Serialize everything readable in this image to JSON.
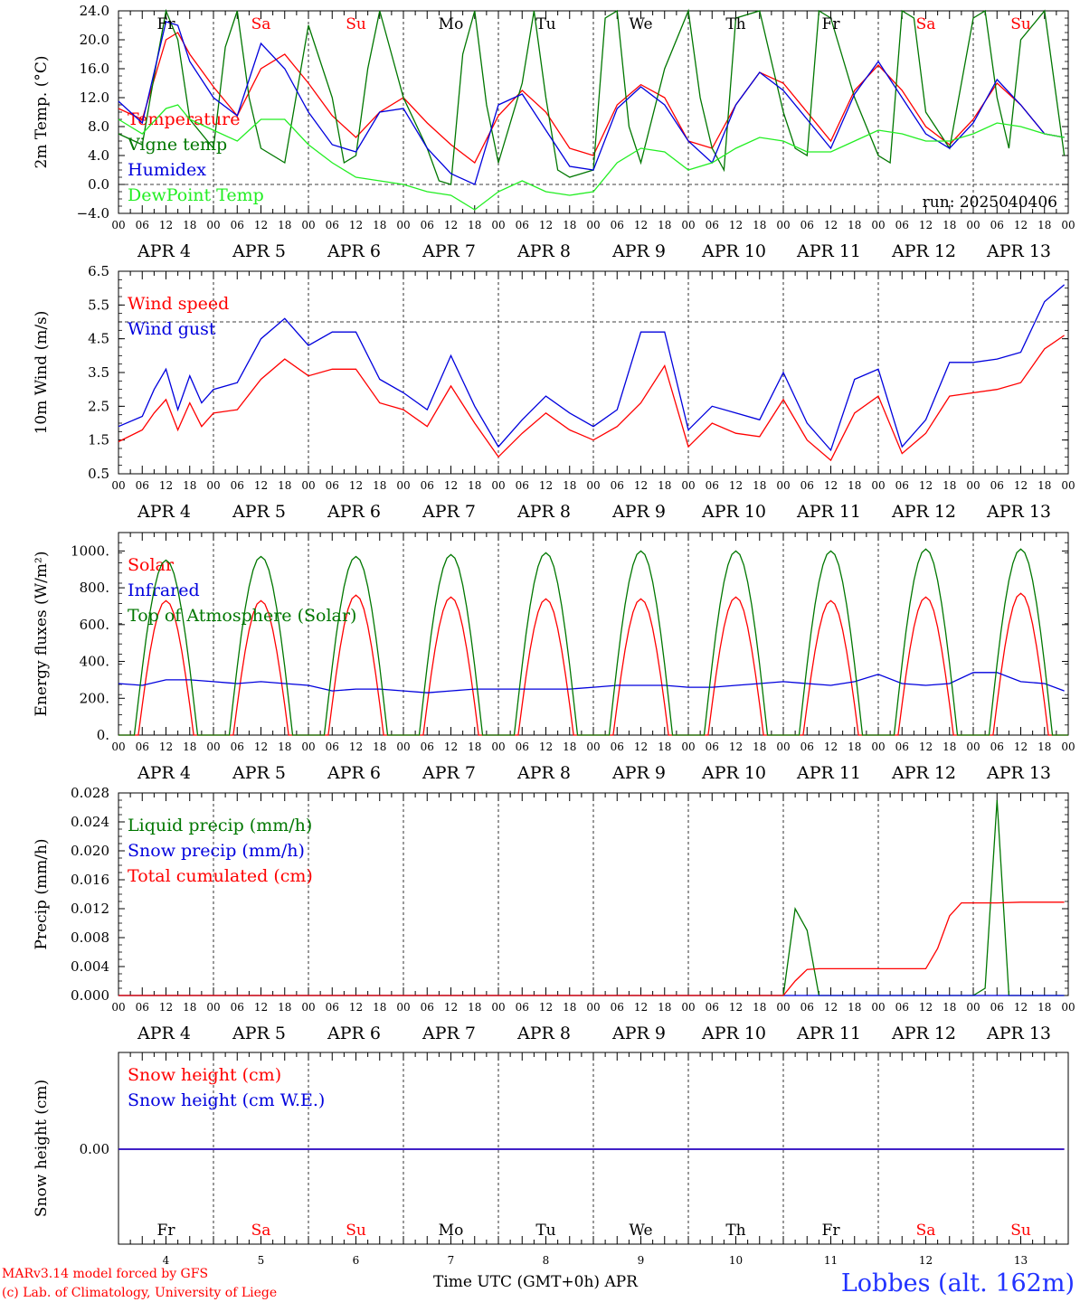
{
  "colors": {
    "red": "#ff0000",
    "green": "#007700",
    "blue": "#0000dd",
    "lightgreen": "#22ee22",
    "grid": "#000000"
  },
  "x_axis": {
    "hour_ticks": [
      "00",
      "06",
      "12",
      "18"
    ],
    "days": [
      "APR 4",
      "APR 5",
      "APR 6",
      "APR 7",
      "APR 8",
      "APR 9",
      "APR 10",
      "APR 11",
      "APR 12",
      "APR 13"
    ],
    "weekdays": [
      "Fr",
      "Sa",
      "Su",
      "Mo",
      "Tu",
      "We",
      "Th",
      "Fr",
      "Sa",
      "Su"
    ],
    "weekday_colors": [
      "#000000",
      "#ff0000",
      "#ff0000",
      "#000000",
      "#000000",
      "#000000",
      "#000000",
      "#000000",
      "#ff0000",
      "#ff0000"
    ],
    "day_numbers": [
      "4",
      "5",
      "6",
      "7",
      "8",
      "9",
      "10",
      "11",
      "12",
      "13"
    ],
    "xlabel": "Time UTC (GMT+0h) APR"
  },
  "footer": {
    "model": "MARv3.14 model forced by GFS",
    "credit": "(c) Lab. of Climatology, University of Liege",
    "location": "Lobbes (alt. 162m)"
  },
  "chart_data": [
    {
      "type": "line",
      "ylabel": "2m Temp. (°C)",
      "ylim": [
        -4,
        24
      ],
      "yticks": [
        "24.0",
        "20.0",
        "16.0",
        "12.0",
        "8.0",
        "4.0",
        "0.0",
        "-4.0"
      ],
      "annotation": "run: 2025040406",
      "grid": "vertical dotted at 00 UTC, horizontal dashed at 0",
      "x_units": "hours since APR 4 00 UTC",
      "series": [
        {
          "name": "Temperature",
          "color": "#ff0000",
          "x": [
            0,
            6,
            12,
            15,
            18,
            24,
            30,
            36,
            42,
            48,
            54,
            60,
            66,
            72,
            78,
            84,
            90,
            96,
            102,
            108,
            114,
            120,
            126,
            132,
            138,
            144,
            150,
            156,
            162,
            168,
            174,
            180,
            186,
            192,
            198,
            204,
            210,
            216,
            222,
            228,
            234,
            239
          ],
          "values": [
            10.5,
            9,
            20,
            21,
            18,
            13.5,
            9.5,
            16,
            18,
            14,
            9.5,
            6.5,
            10,
            12,
            8.5,
            5.5,
            3,
            9.5,
            13,
            10,
            5,
            4,
            11,
            13.8,
            12,
            6,
            5,
            11,
            15.5,
            14,
            10,
            6,
            13,
            16.5,
            13,
            8,
            5.5,
            9,
            14,
            11,
            7,
            6.5
          ]
        },
        {
          "name": "Vigne temp",
          "color": "#007700",
          "x": [
            0,
            6,
            9,
            12,
            15,
            18,
            24,
            27,
            30,
            33,
            36,
            42,
            48,
            54,
            57,
            60,
            63,
            66,
            72,
            78,
            81,
            84,
            87,
            90,
            93,
            96,
            102,
            105,
            108,
            111,
            114,
            120,
            123,
            126,
            129,
            132,
            138,
            144,
            147,
            150,
            153,
            156,
            162,
            168,
            171,
            174,
            177,
            180,
            186,
            192,
            195,
            198,
            201,
            204,
            210,
            216,
            219,
            222,
            225,
            228,
            234,
            239
          ],
          "values": [
            7,
            5.5,
            15,
            24,
            20,
            9,
            5,
            19,
            24,
            12,
            5,
            3,
            22,
            12,
            3,
            4,
            16,
            24,
            12,
            5,
            0.5,
            0,
            18,
            24,
            11,
            3,
            14,
            24,
            12,
            2,
            1,
            2,
            23,
            24,
            8,
            3,
            16,
            24,
            12,
            5,
            2,
            23,
            24,
            10,
            5,
            4,
            24,
            23,
            12,
            4,
            3,
            24,
            23,
            10,
            5,
            23,
            24,
            12,
            5,
            20,
            24,
            4
          ]
        },
        {
          "name": "Humidex",
          "color": "#0000dd",
          "x": [
            0,
            6,
            12,
            15,
            18,
            24,
            30,
            36,
            42,
            48,
            54,
            60,
            66,
            72,
            78,
            84,
            90,
            96,
            102,
            108,
            114,
            120,
            126,
            132,
            138,
            144,
            150,
            156,
            162,
            168,
            174,
            180,
            186,
            192,
            198,
            204,
            210,
            216,
            222,
            228,
            234,
            239
          ],
          "values": [
            11.5,
            8.5,
            22.5,
            22,
            17,
            12,
            9.5,
            19.5,
            16,
            10,
            5.5,
            4.5,
            10,
            10.5,
            5,
            1.5,
            0,
            11,
            12.5,
            7.5,
            2.5,
            2,
            10.5,
            13.5,
            11,
            6,
            3,
            11,
            15.5,
            13,
            9,
            5,
            12.5,
            17,
            12,
            7,
            5,
            8.5,
            14.5,
            11,
            7,
            6.5
          ]
        },
        {
          "name": "DewPoint Temp",
          "color": "#22ee22",
          "x": [
            0,
            6,
            12,
            15,
            18,
            24,
            30,
            36,
            42,
            48,
            54,
            60,
            66,
            72,
            78,
            84,
            90,
            96,
            102,
            108,
            114,
            120,
            126,
            132,
            138,
            144,
            150,
            156,
            162,
            168,
            174,
            180,
            186,
            192,
            198,
            204,
            210,
            216,
            222,
            228,
            234,
            239
          ],
          "values": [
            9,
            7,
            10.5,
            11,
            9,
            7.5,
            6,
            9,
            9,
            5.5,
            3,
            1,
            0.5,
            0,
            -1,
            -1.5,
            -3.5,
            -1,
            0.5,
            -1,
            -1.5,
            -1,
            3,
            5,
            4.5,
            2,
            3,
            5,
            6.5,
            6,
            4.5,
            4.5,
            6,
            7.5,
            7,
            6,
            6,
            7,
            8.5,
            8,
            7,
            6.5
          ]
        }
      ]
    },
    {
      "type": "line",
      "ylabel": "10m Wind (m/s)",
      "ylim": [
        0.5,
        6.5
      ],
      "yticks": [
        "6.5",
        "5.5",
        "4.5",
        "3.5",
        "2.5",
        "1.5",
        "0.5"
      ],
      "grid": "vertical dotted at 00 UTC, horizontal dashed at 5",
      "x_units": "hours since APR 4 00 UTC",
      "series": [
        {
          "name": "Wind speed",
          "color": "#ff0000",
          "x": [
            0,
            6,
            9,
            12,
            15,
            18,
            21,
            24,
            30,
            36,
            42,
            48,
            54,
            60,
            66,
            72,
            78,
            84,
            90,
            96,
            102,
            108,
            114,
            120,
            126,
            132,
            138,
            144,
            150,
            156,
            162,
            168,
            174,
            180,
            186,
            192,
            198,
            204,
            210,
            216,
            222,
            228,
            234,
            239
          ],
          "values": [
            1.45,
            1.8,
            2.3,
            2.7,
            1.8,
            2.6,
            1.9,
            2.3,
            2.4,
            3.3,
            3.9,
            3.4,
            3.6,
            3.6,
            2.6,
            2.4,
            1.9,
            3.1,
            2,
            1,
            1.7,
            2.3,
            1.8,
            1.5,
            1.9,
            2.6,
            3.7,
            1.3,
            2,
            1.7,
            1.6,
            2.7,
            1.5,
            0.9,
            2.3,
            2.8,
            1.1,
            1.7,
            2.8,
            2.9,
            3,
            3.2,
            4.2,
            4.6
          ]
        },
        {
          "name": "Wind gust",
          "color": "#0000dd",
          "x": [
            0,
            6,
            9,
            12,
            15,
            18,
            21,
            24,
            30,
            36,
            42,
            48,
            54,
            60,
            66,
            72,
            78,
            84,
            90,
            96,
            102,
            108,
            114,
            120,
            126,
            132,
            138,
            144,
            150,
            156,
            162,
            168,
            174,
            180,
            186,
            192,
            198,
            204,
            210,
            216,
            222,
            228,
            234,
            239
          ],
          "values": [
            1.9,
            2.2,
            3,
            3.6,
            2.4,
            3.4,
            2.6,
            3,
            3.2,
            4.5,
            5.1,
            4.3,
            4.7,
            4.7,
            3.3,
            2.9,
            2.4,
            4,
            2.5,
            1.3,
            2.1,
            2.8,
            2.3,
            1.9,
            2.4,
            4.7,
            4.7,
            1.8,
            2.5,
            2.3,
            2.1,
            3.5,
            2,
            1.2,
            3.3,
            3.6,
            1.3,
            2.1,
            3.8,
            3.8,
            3.9,
            4.1,
            5.6,
            6.1
          ]
        }
      ]
    },
    {
      "type": "line",
      "ylabel": "Energy fluxes (W/m²)",
      "ylim": [
        0,
        1100
      ],
      "yticks": [
        "1000.",
        "800.",
        "600.",
        "400.",
        "200.",
        "0."
      ],
      "grid": "vertical dotted at 00 UTC",
      "x_units": "hours since APR 4 00 UTC",
      "series": [
        {
          "name": "Solar",
          "color": "#ff0000",
          "day_peaks": [
            730,
            730,
            760,
            750,
            740,
            740,
            750,
            730,
            750,
            770
          ],
          "peak_hour": 12,
          "half_width_hours": 7
        },
        {
          "name": "Infrared",
          "color": "#0000dd",
          "x": [
            0,
            6,
            12,
            18,
            24,
            30,
            36,
            42,
            48,
            54,
            60,
            66,
            72,
            78,
            84,
            90,
            96,
            102,
            108,
            114,
            120,
            126,
            132,
            138,
            144,
            150,
            156,
            162,
            168,
            174,
            180,
            186,
            192,
            198,
            204,
            210,
            216,
            222,
            228,
            234,
            239
          ],
          "values": [
            280,
            270,
            300,
            300,
            290,
            280,
            290,
            280,
            270,
            240,
            250,
            250,
            240,
            230,
            240,
            250,
            250,
            250,
            250,
            250,
            260,
            270,
            270,
            270,
            260,
            260,
            270,
            280,
            290,
            280,
            270,
            290,
            330,
            280,
            270,
            280,
            340,
            340,
            290,
            280,
            240
          ]
        },
        {
          "name": "Top of Atmosphere (Solar)",
          "color": "#007700",
          "day_peaks": [
            950,
            970,
            970,
            980,
            990,
            1000,
            1000,
            1000,
            1010,
            1010
          ],
          "peak_hour": 12,
          "half_width_hours": 8
        }
      ]
    },
    {
      "type": "line",
      "ylabel": "Precip (mm/h)",
      "ylim": [
        0,
        0.028
      ],
      "yticks": [
        "0.028",
        "0.024",
        "0.020",
        "0.016",
        "0.012",
        "0.008",
        "0.004",
        "0.000"
      ],
      "grid": "vertical dotted at 00 UTC",
      "x_units": "hours since APR 4 00 UTC",
      "series": [
        {
          "name": "Liquid precip (mm/h)",
          "color": "#007700",
          "x": [
            0,
            168,
            171,
            174,
            177,
            180,
            183,
            186,
            216,
            219,
            222,
            225,
            228,
            231,
            234,
            237,
            239
          ],
          "values": [
            0,
            0,
            0.012,
            0.009,
            0,
            0,
            0,
            0,
            0,
            0.001,
            0.027,
            0,
            0,
            0,
            0,
            0,
            0
          ]
        },
        {
          "name": "Snow precip (mm/h)",
          "color": "#0000dd",
          "x": [
            0,
            239
          ],
          "values": [
            0,
            0
          ]
        },
        {
          "name": "Total cumulated (cm)",
          "color": "#ff0000",
          "x": [
            0,
            168,
            171,
            174,
            177,
            180,
            186,
            195,
            204,
            207,
            210,
            213,
            216,
            222,
            228,
            234,
            239
          ],
          "values": [
            0,
            0,
            0.002,
            0.0036,
            0.0037,
            0.0037,
            0.0037,
            0.0037,
            0.0037,
            0.0065,
            0.011,
            0.0128,
            0.0128,
            0.0128,
            0.0129,
            0.0129,
            0.0129
          ]
        }
      ]
    },
    {
      "type": "line",
      "ylabel": "Snow height (cm)",
      "yticks": [
        "0.00"
      ],
      "series": [
        {
          "name": "Snow height (cm)",
          "color": "#ff0000",
          "x": [
            0,
            239
          ],
          "values": [
            0,
            0
          ]
        },
        {
          "name": "Snow height (cm W.E.)",
          "color": "#0000dd",
          "x": [
            0,
            239
          ],
          "values": [
            0,
            0
          ]
        }
      ]
    }
  ]
}
